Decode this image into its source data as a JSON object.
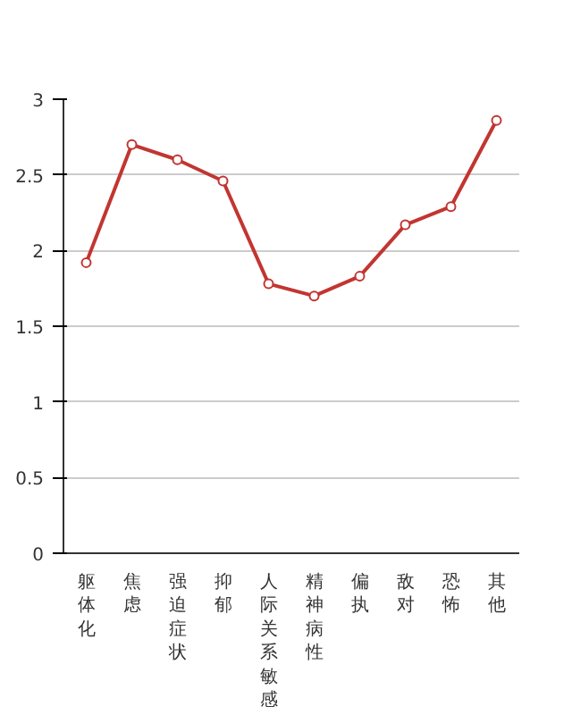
{
  "chart_data": {
    "type": "line",
    "categories": [
      "躯体化",
      "焦虑",
      "强迫症状",
      "抑郁",
      "人际关系敏感",
      "精神病性",
      "偏执",
      "敌对",
      "恐怖",
      "其他"
    ],
    "series": [
      {
        "color": "#c23531",
        "values": [
          1.92,
          2.7,
          2.6,
          2.46,
          1.78,
          1.7,
          1.83,
          2.17,
          2.29,
          2.86
        ]
      }
    ],
    "ylim": [
      0,
      3
    ],
    "yticks": [
      0,
      0.5,
      1,
      1.5,
      2,
      2.5,
      3
    ],
    "grid": "y",
    "marker": "circle",
    "line_style": "solid"
  }
}
